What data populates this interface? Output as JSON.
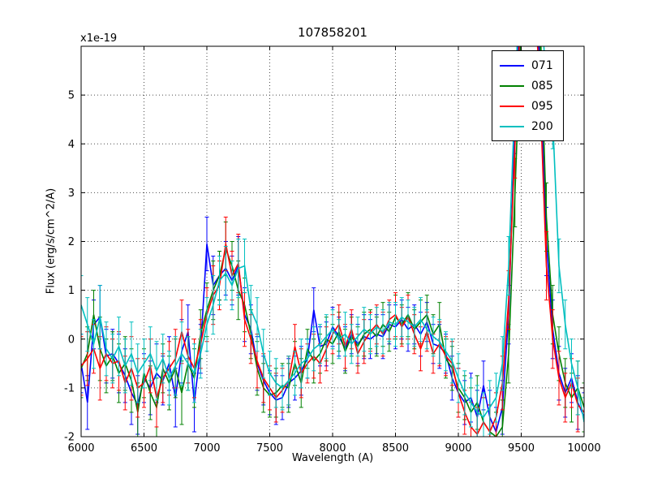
{
  "labels": {
    "title": "107858201",
    "xlabel": "Wavelength (A)",
    "ylabel": "Flux (erg/s/cm^2/A)",
    "offset": "x1e-19"
  },
  "chart_data": {
    "type": "line",
    "title": "107858201",
    "xlabel": "Wavelength (A)",
    "ylabel": "Flux (erg/s/cm^2/A)",
    "y_scale": "1e-19",
    "xlim": [
      6000,
      10000
    ],
    "ylim": [
      -2,
      6
    ],
    "grid": true,
    "legend_position": "upper right",
    "error_bars": true,
    "x_tick_labels": [
      "6000",
      "6500",
      "7000",
      "7500",
      "8000",
      "8500",
      "9000",
      "9500",
      "10000"
    ],
    "y_tick_labels": [
      "-2",
      "-1",
      "0",
      "1",
      "2",
      "3",
      "4",
      "5"
    ],
    "x": [
      6000,
      6050,
      6100,
      6150,
      6200,
      6250,
      6300,
      6350,
      6400,
      6450,
      6500,
      6550,
      6600,
      6650,
      6700,
      6750,
      6800,
      6850,
      6900,
      6950,
      7000,
      7050,
      7100,
      7150,
      7200,
      7250,
      7300,
      7350,
      7400,
      7450,
      7500,
      7550,
      7600,
      7650,
      7700,
      7750,
      7800,
      7850,
      7900,
      7950,
      8000,
      8050,
      8100,
      8150,
      8200,
      8250,
      8300,
      8350,
      8400,
      8450,
      8500,
      8550,
      8600,
      8650,
      8700,
      8750,
      8800,
      8850,
      8900,
      8950,
      9000,
      9050,
      9100,
      9150,
      9200,
      9250,
      9300,
      9350,
      9400,
      9450,
      9500,
      9550,
      9600,
      9650,
      9700,
      9750,
      9800,
      9850,
      9900,
      9950,
      10000
    ],
    "errors": [
      0.6,
      0.55,
      0.5,
      0.65,
      0.55,
      0.5,
      0.6,
      0.55,
      0.65,
      0.6,
      0.5,
      0.55,
      0.6,
      0.5,
      0.55,
      0.6,
      0.65,
      0.55,
      0.6,
      0.5,
      0.55,
      0.6,
      0.5,
      0.55,
      0.5,
      0.6,
      0.55,
      0.5,
      0.55,
      0.5,
      0.45,
      0.5,
      0.45,
      0.5,
      0.45,
      0.5,
      0.4,
      0.45,
      0.4,
      0.45,
      0.4,
      0.4,
      0.45,
      0.4,
      0.4,
      0.45,
      0.4,
      0.4,
      0.45,
      0.4,
      0.45,
      0.4,
      0.45,
      0.4,
      0.45,
      0.4,
      0.4,
      0.45,
      0.4,
      0.45,
      0.5,
      0.45,
      0.5,
      0.55,
      0.5,
      0.55,
      0.5,
      0.55,
      0.6,
      0.7,
      0.8,
      0.9,
      0.9,
      0.8,
      0.7,
      0.6,
      0.55,
      0.5,
      0.5,
      0.55,
      0.5
    ],
    "series": [
      {
        "name": "071",
        "color": "#0000ff",
        "values": [
          -0.5,
          -1.3,
          0.3,
          0.45,
          -0.35,
          -0.3,
          -0.5,
          -0.75,
          -1.1,
          -1.35,
          -0.8,
          -1.0,
          -0.7,
          -0.85,
          -0.5,
          -1.2,
          -0.25,
          0.15,
          -1.3,
          -0.2,
          1.95,
          1.1,
          1.3,
          1.45,
          1.2,
          1.5,
          0.5,
          0.2,
          -0.5,
          -0.85,
          -1.1,
          -1.25,
          -1.2,
          -0.9,
          -0.8,
          -0.65,
          -0.4,
          0.6,
          -0.15,
          -0.1,
          0.25,
          0.05,
          -0.2,
          0.1,
          -0.1,
          0.05,
          0.0,
          0.1,
          0.05,
          0.3,
          0.25,
          0.4,
          0.2,
          0.3,
          0.1,
          0.35,
          -0.1,
          -0.15,
          -0.3,
          -0.8,
          -1.1,
          -1.3,
          -1.2,
          -1.6,
          -0.95,
          -1.6,
          -1.9,
          -1.4,
          0.5,
          4.5,
          7.5,
          8.5,
          8.0,
          5.5,
          2.0,
          0.2,
          -0.7,
          -1.1,
          -0.8,
          -1.3,
          -1.6
        ]
      },
      {
        "name": "085",
        "color": "#008000",
        "values": [
          -0.6,
          -0.3,
          0.5,
          -0.2,
          -0.55,
          -0.35,
          -0.7,
          -0.5,
          -0.85,
          -1.5,
          -0.7,
          -1.1,
          -1.4,
          -0.6,
          -0.9,
          -0.6,
          -1.1,
          -0.5,
          -0.8,
          0.1,
          0.6,
          1.0,
          1.3,
          1.85,
          1.5,
          1.0,
          0.7,
          0.1,
          -0.6,
          -1.0,
          -1.15,
          -1.1,
          -0.95,
          -1.0,
          -0.5,
          -0.9,
          -0.2,
          -0.45,
          -0.3,
          0.0,
          -0.1,
          0.15,
          -0.25,
          0.05,
          -0.15,
          0.1,
          0.2,
          0.05,
          0.3,
          0.15,
          0.45,
          0.3,
          0.5,
          0.2,
          0.35,
          0.5,
          0.1,
          0.3,
          -0.4,
          -0.6,
          -1.0,
          -1.2,
          -1.5,
          -1.3,
          -1.7,
          -1.9,
          -2.0,
          -1.8,
          -0.3,
          3.0,
          6.5,
          8.5,
          8.5,
          6.5,
          2.5,
          0.5,
          -0.3,
          -0.9,
          -1.2,
          -1.0,
          -1.4
        ]
      },
      {
        "name": "095",
        "color": "#ff0000",
        "values": [
          -0.55,
          -0.4,
          -0.2,
          -0.6,
          -0.3,
          -0.5,
          -0.45,
          -0.9,
          -0.6,
          -1.0,
          -0.9,
          -0.55,
          -1.2,
          -0.8,
          -0.6,
          -0.4,
          0.15,
          -0.35,
          -0.6,
          -0.1,
          0.5,
          0.9,
          1.1,
          1.95,
          1.3,
          1.55,
          0.4,
          0.0,
          -0.45,
          -0.8,
          -1.0,
          -1.2,
          -1.05,
          -0.85,
          -0.15,
          -0.7,
          -0.5,
          -0.35,
          -0.5,
          -0.2,
          0.1,
          0.3,
          -0.15,
          0.2,
          -0.3,
          -0.05,
          0.15,
          0.3,
          0.1,
          0.4,
          0.5,
          0.25,
          0.45,
          0.1,
          -0.2,
          0.15,
          -0.3,
          -0.1,
          -0.35,
          -0.5,
          -1.1,
          -1.5,
          -1.8,
          -1.95,
          -1.7,
          -1.9,
          -1.6,
          -0.9,
          0.8,
          4.0,
          7.0,
          8.0,
          7.5,
          5.0,
          1.5,
          0.0,
          -0.8,
          -1.2,
          -0.9,
          -1.35,
          -1.5
        ]
      },
      {
        "name": "200",
        "color": "#00bfbf",
        "values": [
          0.7,
          0.3,
          -0.1,
          0.45,
          -0.2,
          -0.4,
          -0.15,
          -0.55,
          -0.3,
          -0.7,
          -0.5,
          -0.3,
          -0.65,
          -0.4,
          -0.8,
          -0.55,
          -0.3,
          -0.5,
          -0.7,
          -0.3,
          0.3,
          0.7,
          1.2,
          1.35,
          1.1,
          1.45,
          1.5,
          0.6,
          0.3,
          -0.3,
          -0.7,
          -0.9,
          -1.0,
          -0.85,
          -0.7,
          -0.5,
          -0.4,
          -0.2,
          -0.1,
          0.05,
          0.2,
          0.0,
          0.1,
          -0.1,
          0.05,
          0.2,
          0.1,
          0.25,
          0.15,
          0.35,
          0.3,
          0.45,
          0.35,
          0.25,
          0.4,
          0.2,
          0.05,
          -0.05,
          -0.25,
          -0.45,
          -0.8,
          -1.1,
          -1.3,
          -1.5,
          -1.6,
          -1.4,
          -1.2,
          -0.5,
          1.5,
          5.0,
          8.0,
          9.0,
          9.0,
          7.5,
          5.0,
          4.5,
          1.5,
          0.3,
          -0.5,
          -1.0,
          -1.7
        ]
      }
    ]
  }
}
